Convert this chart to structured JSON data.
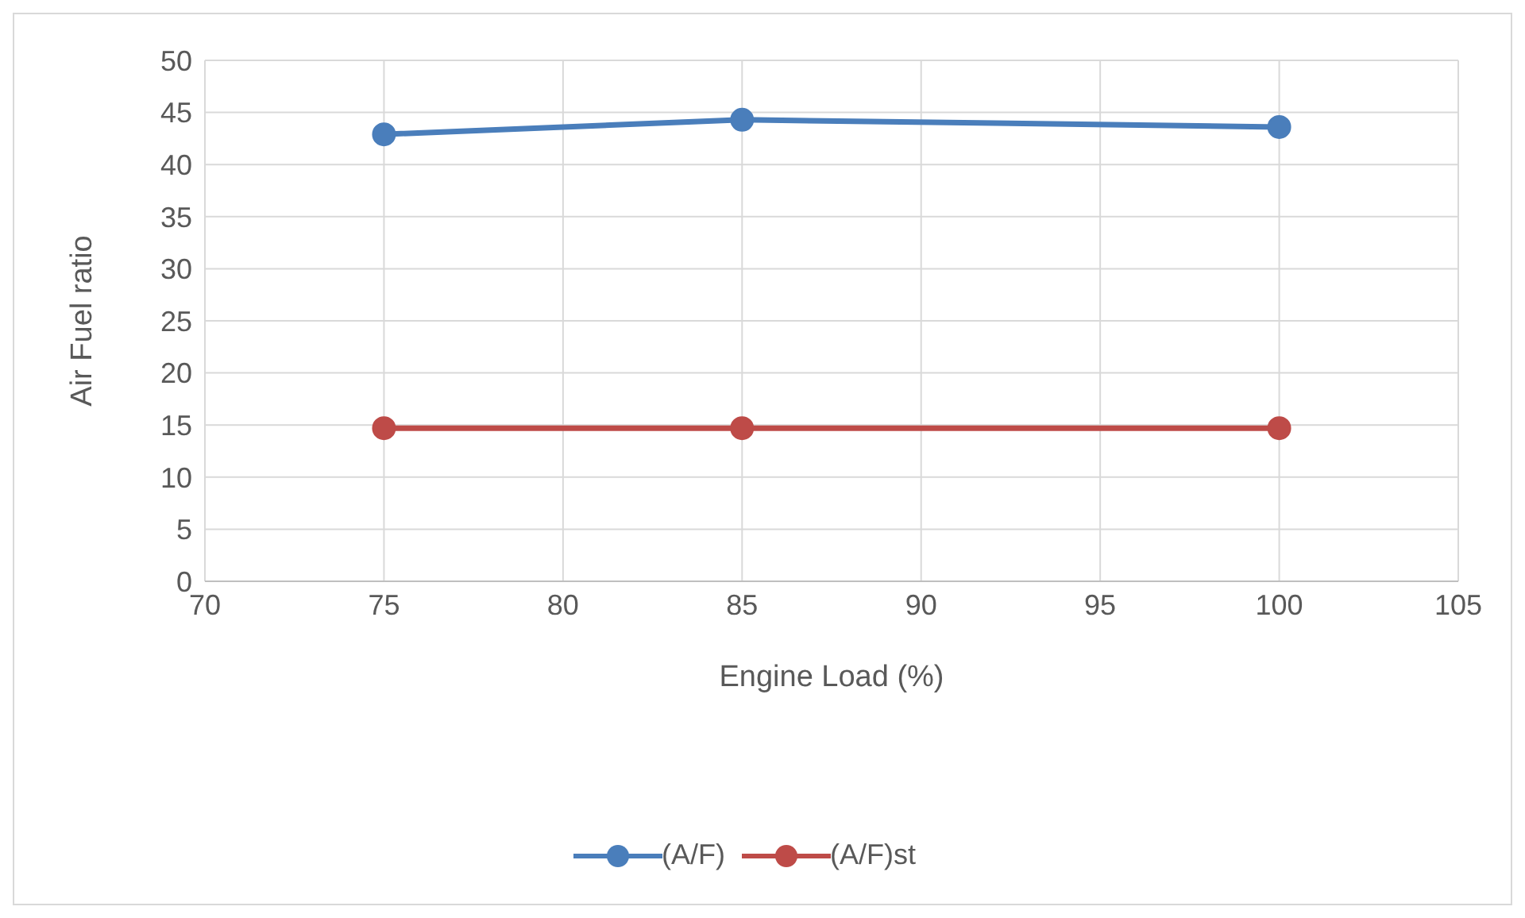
{
  "chart_data": {
    "type": "line",
    "xlabel": "Engine Load (%)",
    "ylabel": "Air Fuel ratio",
    "x": [
      75,
      85,
      100
    ],
    "series": [
      {
        "name": "(A/F)",
        "color": "#4a7ebb",
        "values": [
          42.9,
          44.3,
          43.6
        ]
      },
      {
        "name": "(A/F)st",
        "color": "#be4b48",
        "values": [
          14.7,
          14.7,
          14.7
        ]
      }
    ],
    "xlim": [
      70,
      105
    ],
    "xticks": [
      70,
      75,
      80,
      85,
      90,
      95,
      100,
      105
    ],
    "ylim": [
      0,
      50
    ],
    "yticks": [
      0,
      5,
      10,
      15,
      20,
      25,
      30,
      35,
      40,
      45,
      50
    ],
    "grid": true,
    "legend": "bottom",
    "marker": "circle",
    "line_style": "solid"
  }
}
